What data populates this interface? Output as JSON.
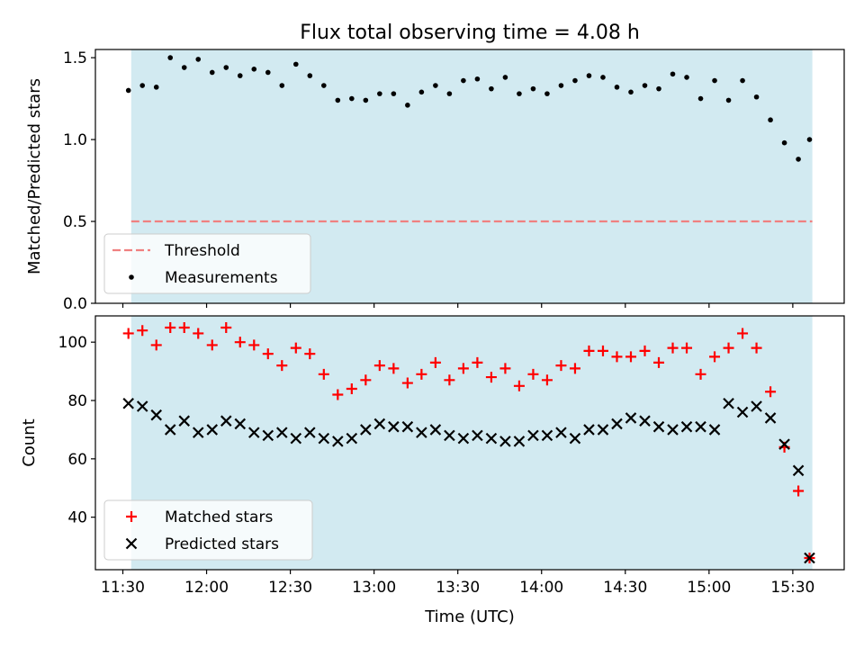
{
  "figure": {
    "title": "Flux total observing time = 4.08 h",
    "xlabel": "Time (UTC)",
    "x_ticks": [
      "11:30",
      "12:00",
      "12:30",
      "13:00",
      "13:30",
      "14:00",
      "14:30",
      "15:00",
      "15:30"
    ],
    "shaded_band_color": "#add8e6"
  },
  "chart_data": [
    {
      "type": "scatter",
      "ylabel": "Matched/Predicted stars",
      "ylim": [
        0,
        1.55
      ],
      "y_ticks": [
        "0.0",
        "0.5",
        "1.0",
        "1.5"
      ],
      "legend_position": "lower-left",
      "threshold": {
        "name": "Threshold",
        "value": 0.5,
        "color": "#f08080",
        "style": "dashed"
      },
      "series": [
        {
          "name": "Measurements",
          "color": "#000000",
          "marker": "dot",
          "x": [
            "11:32",
            "11:37",
            "11:42",
            "11:47",
            "11:52",
            "11:57",
            "12:02",
            "12:07",
            "12:12",
            "12:17",
            "12:22",
            "12:27",
            "12:32",
            "12:37",
            "12:42",
            "12:47",
            "12:52",
            "12:57",
            "13:02",
            "13:07",
            "13:12",
            "13:17",
            "13:22",
            "13:27",
            "13:32",
            "13:37",
            "13:42",
            "13:47",
            "13:52",
            "13:57",
            "14:02",
            "14:07",
            "14:12",
            "14:17",
            "14:22",
            "14:27",
            "14:32",
            "14:37",
            "14:42",
            "14:47",
            "14:52",
            "14:57",
            "15:02",
            "15:07",
            "15:12",
            "15:17",
            "15:22",
            "15:27",
            "15:32",
            "15:36"
          ],
          "values": [
            1.3,
            1.33,
            1.32,
            1.5,
            1.44,
            1.49,
            1.41,
            1.44,
            1.39,
            1.43,
            1.41,
            1.33,
            1.46,
            1.39,
            1.33,
            1.24,
            1.25,
            1.24,
            1.28,
            1.28,
            1.21,
            1.29,
            1.33,
            1.28,
            1.36,
            1.37,
            1.31,
            1.38,
            1.28,
            1.31,
            1.28,
            1.33,
            1.36,
            1.39,
            1.38,
            1.32,
            1.29,
            1.33,
            1.31,
            1.4,
            1.38,
            1.25,
            1.36,
            1.24,
            1.36,
            1.26,
            1.12,
            0.98,
            0.88,
            1.0
          ]
        }
      ]
    },
    {
      "type": "scatter",
      "ylabel": "Count",
      "ylim": [
        22,
        109
      ],
      "y_ticks": [
        "40",
        "60",
        "80",
        "100"
      ],
      "legend_position": "lower-left",
      "series": [
        {
          "name": "Matched stars",
          "color": "#ff0000",
          "marker": "plus",
          "x": [
            "11:32",
            "11:37",
            "11:42",
            "11:47",
            "11:52",
            "11:57",
            "12:02",
            "12:07",
            "12:12",
            "12:17",
            "12:22",
            "12:27",
            "12:32",
            "12:37",
            "12:42",
            "12:47",
            "12:52",
            "12:57",
            "13:02",
            "13:07",
            "13:12",
            "13:17",
            "13:22",
            "13:27",
            "13:32",
            "13:37",
            "13:42",
            "13:47",
            "13:52",
            "13:57",
            "14:02",
            "14:07",
            "14:12",
            "14:17",
            "14:22",
            "14:27",
            "14:32",
            "14:37",
            "14:42",
            "14:47",
            "14:52",
            "14:57",
            "15:02",
            "15:07",
            "15:12",
            "15:17",
            "15:22",
            "15:27",
            "15:32",
            "15:36"
          ],
          "values": [
            103,
            104,
            99,
            105,
            105,
            103,
            99,
            105,
            100,
            99,
            96,
            92,
            98,
            96,
            89,
            82,
            84,
            87,
            92,
            91,
            86,
            89,
            93,
            87,
            91,
            93,
            88,
            91,
            85,
            89,
            87,
            92,
            91,
            97,
            97,
            95,
            95,
            97,
            93,
            98,
            98,
            89,
            95,
            98,
            103,
            98,
            83,
            64,
            49,
            26
          ]
        },
        {
          "name": "Predicted stars",
          "color": "#000000",
          "marker": "x",
          "x": [
            "11:32",
            "11:37",
            "11:42",
            "11:47",
            "11:52",
            "11:57",
            "12:02",
            "12:07",
            "12:12",
            "12:17",
            "12:22",
            "12:27",
            "12:32",
            "12:37",
            "12:42",
            "12:47",
            "12:52",
            "12:57",
            "13:02",
            "13:07",
            "13:12",
            "13:17",
            "13:22",
            "13:27",
            "13:32",
            "13:37",
            "13:42",
            "13:47",
            "13:52",
            "13:57",
            "14:02",
            "14:07",
            "14:12",
            "14:17",
            "14:22",
            "14:27",
            "14:32",
            "14:37",
            "14:42",
            "14:47",
            "14:52",
            "14:57",
            "15:02",
            "15:07",
            "15:12",
            "15:17",
            "15:22",
            "15:27",
            "15:32",
            "15:36"
          ],
          "values": [
            79,
            78,
            75,
            70,
            73,
            69,
            70,
            73,
            72,
            69,
            68,
            69,
            67,
            69,
            67,
            66,
            67,
            70,
            72,
            71,
            71,
            69,
            70,
            68,
            67,
            68,
            67,
            66,
            66,
            68,
            68,
            69,
            67,
            70,
            70,
            72,
            74,
            73,
            71,
            70,
            71,
            71,
            70,
            79,
            76,
            78,
            74,
            65,
            56,
            26
          ]
        }
      ]
    }
  ]
}
